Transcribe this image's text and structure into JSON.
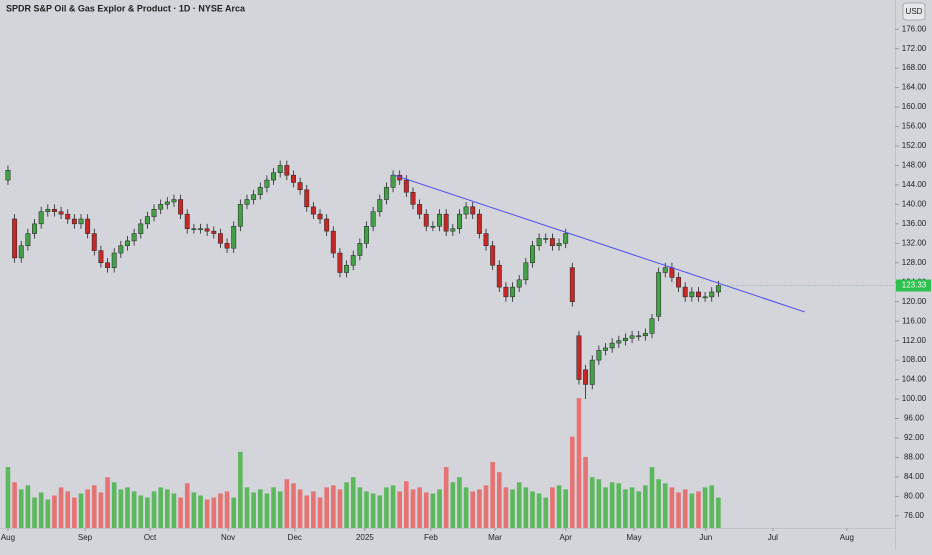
{
  "chart_data": {
    "type": "candlestick",
    "title": "SPDR S&P Oil & Gas Explor & Product · 1D · NYSE Arca",
    "currency": "USD",
    "up_color": "#43a047",
    "down_color": "#c62828",
    "volume_up_color": "#5cb85c",
    "volume_down_color": "#e57373",
    "xlim": [
      -2.4,
      267.2
    ],
    "ylim": [
      73.5,
      182
    ],
    "xticks": [
      {
        "value": 0,
        "label": "Aug"
      },
      {
        "value": 23.2,
        "label": "Sep"
      },
      {
        "value": 42.8,
        "label": "Oct"
      },
      {
        "value": 66.3,
        "label": "Nov"
      },
      {
        "value": 86.4,
        "label": "Dec"
      },
      {
        "value": 107.5,
        "label": "2025"
      },
      {
        "value": 127.4,
        "label": "Feb"
      },
      {
        "value": 146.7,
        "label": "Mar"
      },
      {
        "value": 168,
        "label": "Apr"
      },
      {
        "value": 188.6,
        "label": "May"
      },
      {
        "value": 210.2,
        "label": "Jun"
      },
      {
        "value": 230.4,
        "label": "Jul"
      },
      {
        "value": 252.7,
        "label": "Aug"
      }
    ],
    "yticks": [
      {
        "value": 76,
        "label": "76.00"
      },
      {
        "value": 80,
        "label": "80.00"
      },
      {
        "value": 84,
        "label": "84.00"
      },
      {
        "value": 88,
        "label": "88.00"
      },
      {
        "value": 92,
        "label": "92.00"
      },
      {
        "value": 96,
        "label": "96.00"
      },
      {
        "value": 100,
        "label": "100.00"
      },
      {
        "value": 104,
        "label": "104.00"
      },
      {
        "value": 108,
        "label": "108.00"
      },
      {
        "value": 112,
        "label": "112.00"
      },
      {
        "value": 116,
        "label": "116.00"
      },
      {
        "value": 120,
        "label": "120.00"
      },
      {
        "value": 124,
        "label": "124.00"
      },
      {
        "value": 128,
        "label": "128.00"
      },
      {
        "value": 132,
        "label": "132.00"
      },
      {
        "value": 136,
        "label": "136.00"
      },
      {
        "value": 140,
        "label": "140.00"
      },
      {
        "value": 144,
        "label": "144.00"
      },
      {
        "value": 148,
        "label": "148.00"
      },
      {
        "value": 152,
        "label": "152.00"
      },
      {
        "value": 156,
        "label": "156.00"
      },
      {
        "value": 160,
        "label": "160.00"
      },
      {
        "value": 164,
        "label": "164.00"
      },
      {
        "value": 168,
        "label": "168.00"
      },
      {
        "value": 172,
        "label": "172.00"
      },
      {
        "value": 176,
        "label": "176.00"
      }
    ],
    "x": [
      0,
      2,
      4,
      6,
      8,
      10,
      12,
      14,
      16,
      18,
      20,
      22,
      24,
      26,
      28,
      30,
      32,
      34,
      36,
      38,
      40,
      42,
      44,
      46,
      48,
      50,
      52,
      54,
      56,
      58,
      60,
      62,
      64,
      66,
      68,
      70,
      72,
      74,
      76,
      78,
      80,
      82,
      84,
      86,
      88,
      90,
      92,
      94,
      96,
      98,
      100,
      102,
      104,
      106,
      108,
      110,
      112,
      114,
      116,
      118,
      120,
      122,
      124,
      126,
      128,
      130,
      132,
      134,
      136,
      138,
      140,
      142,
      144,
      146,
      148,
      150,
      152,
      154,
      156,
      158,
      160,
      162,
      164,
      166,
      168,
      170,
      172,
      174,
      176,
      178,
      180,
      182,
      184,
      186,
      188,
      190,
      192,
      194,
      196,
      198,
      200,
      202,
      204,
      206,
      208,
      210,
      212,
      214
    ],
    "open": [
      145,
      137,
      129,
      131.5,
      134,
      136,
      138.5,
      139,
      138.5,
      138,
      137,
      136,
      137,
      134,
      130.5,
      128,
      127,
      130,
      131.5,
      132.5,
      134,
      136,
      137.5,
      139,
      140,
      140.5,
      141,
      138,
      135,
      135,
      135,
      134.5,
      134,
      132,
      131,
      135.5,
      140,
      141,
      142,
      143.5,
      145,
      146.5,
      148,
      146,
      144.5,
      143,
      139.5,
      138,
      137,
      134.5,
      130,
      126,
      127.5,
      129.5,
      132,
      135.5,
      138.5,
      141,
      143.5,
      146,
      145,
      142.5,
      140,
      138,
      135.5,
      135.5,
      138,
      134.5,
      135,
      138,
      139.5,
      138,
      134,
      131.5,
      127.5,
      123,
      121,
      123,
      124.5,
      128,
      131.5,
      133,
      133,
      131.5,
      132,
      127,
      113,
      106,
      103,
      108,
      110,
      110.5,
      111.5,
      112,
      112.5,
      113,
      113,
      113.5,
      117,
      126,
      127,
      125,
      123,
      121,
      122,
      121,
      121,
      122
    ],
    "high": [
      148,
      138,
      132.5,
      135,
      137,
      139.5,
      140,
      140,
      139.5,
      139,
      138,
      138,
      138,
      135,
      131.5,
      129,
      131,
      132.5,
      133.5,
      135,
      137,
      138.5,
      140,
      141,
      141.5,
      142,
      142,
      139,
      136,
      136,
      136,
      135.5,
      135,
      133,
      136.5,
      141,
      142,
      143,
      144.5,
      146,
      147.5,
      149,
      149,
      147,
      145.5,
      144,
      140.5,
      139,
      138,
      135.5,
      131,
      128.5,
      130.5,
      133,
      136.5,
      139.5,
      142,
      144.5,
      147,
      147,
      146,
      143.5,
      141,
      139,
      136.5,
      139,
      139,
      136,
      139,
      140.5,
      140.5,
      139,
      135,
      132.5,
      128.5,
      124,
      124,
      125.5,
      129,
      132.5,
      134,
      134,
      134,
      133,
      135,
      128,
      114,
      107,
      109,
      111,
      111.5,
      112.5,
      113,
      113.5,
      114,
      114,
      114.5,
      117.5,
      127,
      128,
      128,
      126,
      124,
      123,
      123,
      122,
      123,
      124.3
    ],
    "low": [
      144,
      128,
      128,
      130.5,
      133,
      135,
      137.5,
      137.5,
      137,
      136,
      135,
      135,
      133,
      129.5,
      127,
      126,
      126,
      129,
      130.5,
      131.5,
      133,
      135,
      136.5,
      138,
      139,
      139.5,
      137,
      134,
      134,
      134,
      133.5,
      133,
      131,
      130,
      130,
      134.5,
      139,
      140,
      141,
      142.5,
      144,
      145.5,
      145,
      143.5,
      142,
      138.5,
      137,
      136,
      133.5,
      129,
      125,
      125,
      126.5,
      128.5,
      131,
      134.5,
      137.5,
      140,
      142.5,
      144,
      141.5,
      139,
      137,
      134.5,
      134.5,
      134.5,
      133.5,
      133.5,
      134,
      137,
      137,
      133,
      130.5,
      126.5,
      122,
      120,
      120,
      122,
      123.5,
      127,
      130.5,
      132,
      130.5,
      130.5,
      131,
      119,
      103,
      100,
      102,
      107,
      109,
      109.5,
      110.5,
      111,
      111.5,
      112,
      112,
      112.5,
      116,
      125,
      124,
      122,
      120,
      120,
      120,
      120,
      120,
      121
    ],
    "close": [
      147,
      129,
      131.5,
      134,
      136,
      138.5,
      139,
      138.5,
      138,
      137,
      136,
      137,
      134,
      130.5,
      128,
      127,
      130,
      131.5,
      132.5,
      134,
      136,
      137.5,
      139,
      140,
      140.5,
      141,
      138,
      135,
      135,
      135,
      134.5,
      134,
      132,
      131,
      135.5,
      140,
      141,
      142,
      143.5,
      145,
      146.5,
      148,
      146,
      144.5,
      143,
      139.5,
      138,
      137,
      134.5,
      130,
      126,
      127.5,
      129.5,
      132,
      135.5,
      138.5,
      141,
      143.5,
      146,
      145,
      142.5,
      140,
      138,
      135.5,
      135.5,
      138,
      134.5,
      135,
      138,
      139.5,
      138,
      134,
      131.5,
      127.5,
      123,
      121,
      123,
      124.5,
      128,
      131.5,
      133,
      133,
      131.5,
      132,
      134,
      120,
      104,
      103,
      108,
      110,
      110.5,
      111.5,
      112,
      112.5,
      113,
      113,
      113.5,
      116.5,
      126,
      127,
      125,
      123,
      121,
      122,
      121,
      121,
      122,
      123.33
    ],
    "volume": [
      60,
      45,
      38,
      42,
      30,
      35,
      28,
      32,
      40,
      36,
      30,
      34,
      38,
      42,
      35,
      50,
      45,
      38,
      40,
      36,
      32,
      30,
      36,
      40,
      38,
      34,
      30,
      44,
      35,
      32,
      28,
      30,
      34,
      36,
      30,
      75,
      40,
      35,
      38,
      34,
      40,
      36,
      48,
      44,
      38,
      32,
      36,
      30,
      40,
      42,
      38,
      45,
      50,
      40,
      36,
      34,
      32,
      40,
      42,
      36,
      46,
      38,
      40,
      35,
      34,
      38,
      60,
      45,
      50,
      40,
      36,
      38,
      42,
      65,
      55,
      40,
      38,
      45,
      40,
      36,
      34,
      30,
      40,
      42,
      38,
      90,
      128,
      70,
      50,
      48,
      40,
      45,
      44,
      38,
      40,
      36,
      42,
      60,
      48,
      44,
      40,
      35,
      38,
      34,
      36,
      40,
      42,
      30
    ],
    "trendline": {
      "x": [
        116,
        240
      ],
      "values": [
        146.1,
        117.9
      ],
      "color": "#4a4af0"
    }
  }
}
